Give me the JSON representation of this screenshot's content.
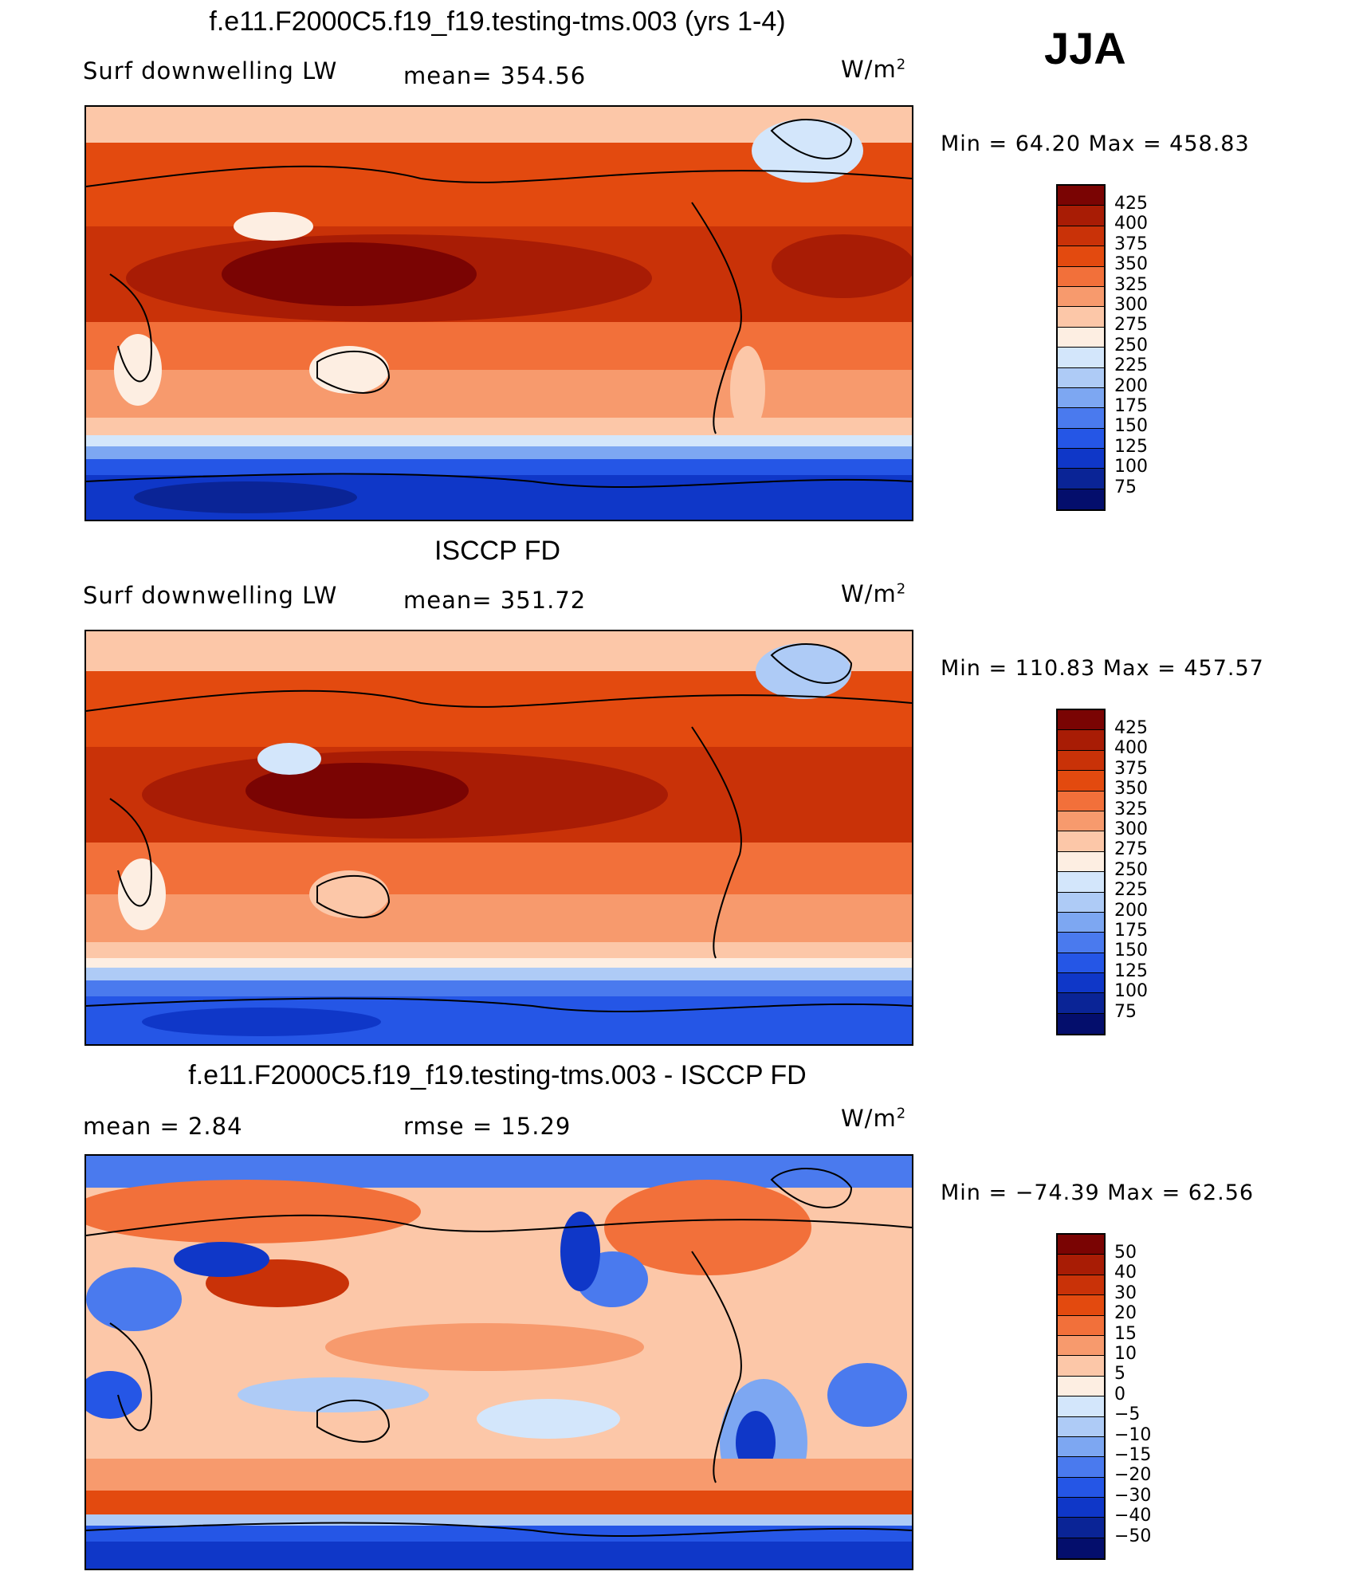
{
  "season": "JJA",
  "units_base": "W/m",
  "units_exp": "2",
  "panels": [
    {
      "title": "f.e11.F2000C5.f19_f19.testing-tms.003 (yrs 1-4)",
      "left_label": "Surf  downwelling  LW",
      "mid_label": "mean=  354.56",
      "minmax": "Min  =    64.20  Max  =  458.83",
      "colorbar": {
        "colors": [
          "#7a0403",
          "#a81c05",
          "#c93208",
          "#e34a0f",
          "#f2703a",
          "#f79a6d",
          "#fcc7a8",
          "#fdeee2",
          "#d3e6fb",
          "#aecbf6",
          "#7da7f2",
          "#4a7aee",
          "#2556e6",
          "#0f37c8",
          "#0a2496",
          "#040e6c"
        ],
        "labels": [
          "425",
          "400",
          "375",
          "350",
          "325",
          "300",
          "275",
          "250",
          "225",
          "200",
          "175",
          "150",
          "125",
          "100",
          "75"
        ]
      }
    },
    {
      "title": "ISCCP FD",
      "left_label": "Surf  downwelling  LW",
      "mid_label": "mean=  351.72",
      "minmax": "Min  =  110.83  Max  =  457.57",
      "colorbar": {
        "colors": [
          "#7a0403",
          "#a81c05",
          "#c93208",
          "#e34a0f",
          "#f2703a",
          "#f79a6d",
          "#fcc7a8",
          "#fdeee2",
          "#d3e6fb",
          "#aecbf6",
          "#7da7f2",
          "#4a7aee",
          "#2556e6",
          "#0f37c8",
          "#0a2496",
          "#040e6c"
        ],
        "labels": [
          "425",
          "400",
          "375",
          "350",
          "325",
          "300",
          "275",
          "250",
          "225",
          "200",
          "175",
          "150",
          "125",
          "100",
          "75"
        ]
      }
    },
    {
      "title": "f.e11.F2000C5.f19_f19.testing-tms.003 - ISCCP FD",
      "left_label": "mean  =      2.84",
      "mid_label": "rmse  =     15.29",
      "minmax": "Min  =  −74.39  Max  =     62.56",
      "colorbar": {
        "colors": [
          "#7a0403",
          "#a81c05",
          "#c93208",
          "#e34a0f",
          "#f2703a",
          "#f79a6d",
          "#fcc7a8",
          "#fdeee2",
          "#d3e6fb",
          "#aecbf6",
          "#7da7f2",
          "#4a7aee",
          "#2556e6",
          "#0f37c8",
          "#0a2496",
          "#040e6c"
        ],
        "labels": [
          "50",
          "40",
          "30",
          "20",
          "15",
          "10",
          "5",
          "0",
          "−5",
          "−10",
          "−15",
          "−20",
          "−30",
          "−40",
          "−50"
        ]
      }
    }
  ]
}
